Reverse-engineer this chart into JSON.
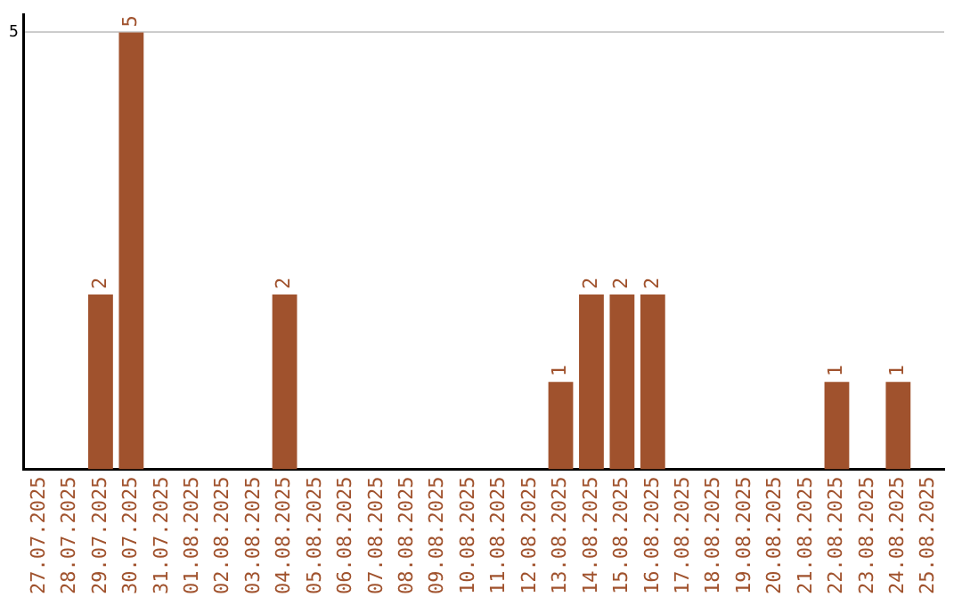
{
  "chart_data": {
    "type": "bar",
    "categories": [
      "27.07.2025",
      "28.07.2025",
      "29.07.2025",
      "30.07.2025",
      "31.07.2025",
      "01.08.2025",
      "02.08.2025",
      "03.08.2025",
      "04.08.2025",
      "05.08.2025",
      "06.08.2025",
      "07.08.2025",
      "08.08.2025",
      "09.08.2025",
      "10.08.2025",
      "11.08.2025",
      "12.08.2025",
      "13.08.2025",
      "14.08.2025",
      "15.08.2025",
      "16.08.2025",
      "17.08.2025",
      "18.08.2025",
      "19.08.2025",
      "20.08.2025",
      "21.08.2025",
      "22.08.2025",
      "23.08.2025",
      "24.08.2025",
      "25.08.2025"
    ],
    "values": [
      null,
      null,
      2,
      5,
      null,
      null,
      null,
      null,
      2,
      null,
      null,
      null,
      null,
      null,
      null,
      null,
      null,
      1,
      2,
      2,
      2,
      null,
      null,
      null,
      null,
      null,
      1,
      null,
      1,
      null
    ],
    "color": "#a0522d",
    "ylim": [
      0,
      5.2
    ],
    "yticks": [
      5
    ],
    "grid": "y",
    "data_labels": true,
    "legend": false
  }
}
